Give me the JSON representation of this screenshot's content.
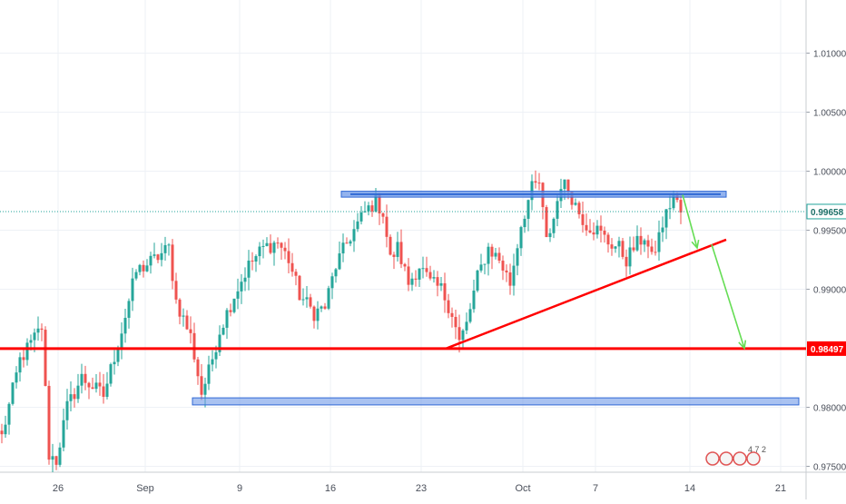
{
  "chart_data": {
    "type": "candlestick",
    "y_axis": {
      "ylim": [
        0.9745,
        1.0145
      ],
      "ticks": [
        {
          "value": 1.01,
          "label": "1.01000"
        },
        {
          "value": 1.005,
          "label": "1.00500"
        },
        {
          "value": 1.0,
          "label": "1.00000"
        },
        {
          "value": 0.995,
          "label": "0.99500"
        },
        {
          "value": 0.99,
          "label": "0.99000"
        },
        {
          "value": 0.98,
          "label": "0.98000"
        },
        {
          "value": 0.975,
          "label": "0.97500"
        }
      ],
      "last_price": {
        "value": 0.99658,
        "label": "0.99658"
      },
      "level_badge": {
        "value": 0.98497,
        "label": "0.98497"
      }
    },
    "x_axis": {
      "ticks": [
        {
          "label": "26",
          "bar": 16
        },
        {
          "label": "Sep",
          "bar": 40
        },
        {
          "label": "9",
          "bar": 66
        },
        {
          "label": "16",
          "bar": 91
        },
        {
          "label": "23",
          "bar": 116
        },
        {
          "label": "Oct",
          "bar": 144
        },
        {
          "label": "7",
          "bar": 164
        },
        {
          "label": "14",
          "bar": 190
        },
        {
          "label": "21",
          "bar": 215
        }
      ]
    },
    "price_path": [
      [
        0,
        0.9775
      ],
      [
        5,
        0.984
      ],
      [
        11,
        0.9868
      ],
      [
        13,
        0.976
      ],
      [
        15,
        0.9755
      ],
      [
        18,
        0.98
      ],
      [
        22,
        0.9825
      ],
      [
        28,
        0.981
      ],
      [
        33,
        0.9865
      ],
      [
        37,
        0.9915
      ],
      [
        42,
        0.9925
      ],
      [
        46,
        0.9935
      ],
      [
        48,
        0.989
      ],
      [
        52,
        0.986
      ],
      [
        55,
        0.9812
      ],
      [
        57,
        0.983
      ],
      [
        60,
        0.9865
      ],
      [
        64,
        0.9895
      ],
      [
        68,
        0.992
      ],
      [
        72,
        0.9935
      ],
      [
        76,
        0.994
      ],
      [
        79,
        0.9925
      ],
      [
        82,
        0.9895
      ],
      [
        86,
        0.988
      ],
      [
        89,
        0.9885
      ],
      [
        92,
        0.992
      ],
      [
        96,
        0.9945
      ],
      [
        100,
        0.9965
      ],
      [
        103,
        0.9975
      ],
      [
        105,
        0.9965
      ],
      [
        107,
        0.9925
      ],
      [
        109,
        0.9935
      ],
      [
        112,
        0.9905
      ],
      [
        115,
        0.992
      ],
      [
        118,
        0.9905
      ],
      [
        121,
        0.99
      ],
      [
        124,
        0.988
      ],
      [
        126,
        0.9855
      ],
      [
        128,
        0.987
      ],
      [
        131,
        0.991
      ],
      [
        134,
        0.9935
      ],
      [
        137,
        0.9925
      ],
      [
        140,
        0.9905
      ],
      [
        143,
        0.9955
      ],
      [
        146,
        0.9985
      ],
      [
        148,
        0.999
      ],
      [
        150,
        0.994
      ],
      [
        152,
        0.996
      ],
      [
        154,
        0.999
      ],
      [
        156,
        0.9985
      ],
      [
        159,
        0.9965
      ],
      [
        161,
        0.9955
      ],
      [
        164,
        0.995
      ],
      [
        167,
        0.994
      ],
      [
        170,
        0.9935
      ],
      [
        172,
        0.9925
      ],
      [
        174,
        0.9935
      ],
      [
        177,
        0.9945
      ],
      [
        179,
        0.9925
      ],
      [
        182,
        0.9955
      ],
      [
        185,
        0.998
      ],
      [
        187,
        0.9965
      ]
    ],
    "annotations": {
      "resistance_zone": {
        "bar_start": 94,
        "bar_end": 200,
        "y_top": 0.9983,
        "y_bottom": 0.9978
      },
      "support_zone": {
        "bar_start": 53,
        "bar_end": 220,
        "y_top": 0.9808,
        "y_bottom": 0.9802
      },
      "horizontal_level": {
        "value": 0.98497
      },
      "trendline": {
        "from": {
          "bar": 123,
          "value": 0.985
        },
        "to": {
          "bar": 200,
          "value": 0.9942
        }
      },
      "projection_arrows": [
        {
          "from": {
            "bar": 188,
            "value": 0.998
          },
          "to": {
            "bar": 192,
            "value": 0.9935
          }
        },
        {
          "from": {
            "bar": 196,
            "value": 0.9938
          },
          "to": {
            "bar": 205,
            "value": 0.985
          }
        }
      ]
    },
    "grid": true,
    "watermark_text": "4 7 2"
  },
  "colors": {
    "up": "#26a69a",
    "down": "#ef5350",
    "level": "#ff0000",
    "zone_fill": "#6f9ae8",
    "zone_stroke": "#2f68d4",
    "arrow": "#66dd55",
    "grid": "#eef1f6",
    "axis_text": "#4a4f5a",
    "last_price_line": "#1fa39a"
  }
}
